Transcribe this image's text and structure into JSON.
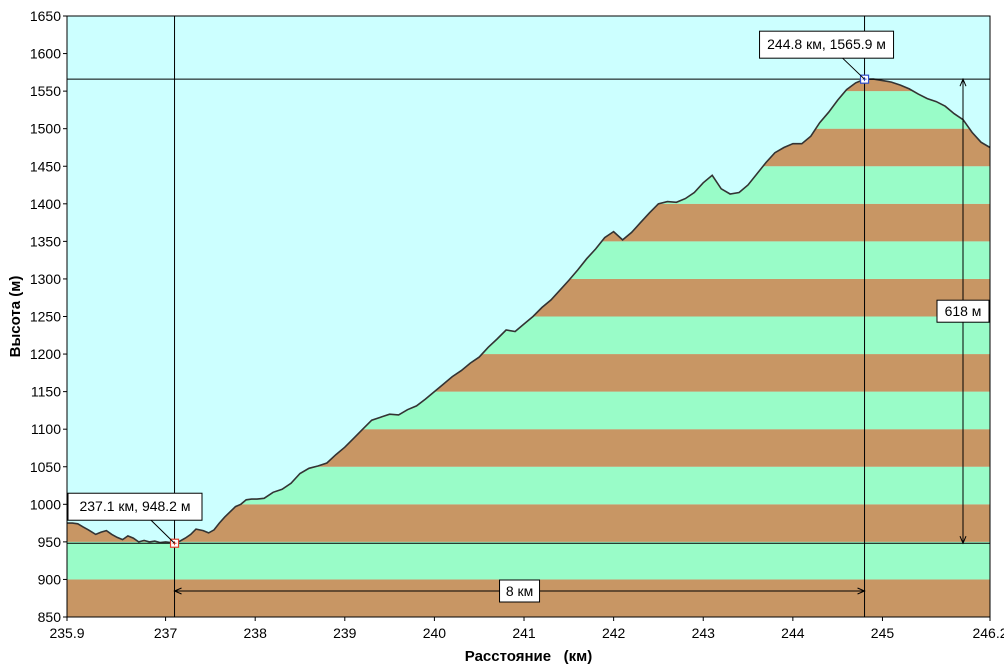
{
  "chart_data": {
    "type": "area",
    "xlabel": "Расстояние   (км)",
    "ylabel": "Высота (м)",
    "xlim": [
      235.9,
      246.2
    ],
    "ylim": [
      850,
      1650
    ],
    "x_ticks": [
      {
        "value": 235.9,
        "label": "235.9"
      },
      {
        "value": 237,
        "label": "237"
      },
      {
        "value": 238,
        "label": "238"
      },
      {
        "value": 239,
        "label": "239"
      },
      {
        "value": 240,
        "label": "240"
      },
      {
        "value": 241,
        "label": "241"
      },
      {
        "value": 242,
        "label": "242"
      },
      {
        "value": 243,
        "label": "243"
      },
      {
        "value": 244,
        "label": "244"
      },
      {
        "value": 245,
        "label": "245"
      },
      {
        "value": 246.2,
        "label": "246.2"
      }
    ],
    "y_ticks": [
      {
        "value": 850,
        "label": "850"
      },
      {
        "value": 900,
        "label": "900"
      },
      {
        "value": 950,
        "label": "950"
      },
      {
        "value": 1000,
        "label": "1000"
      },
      {
        "value": 1050,
        "label": "1050"
      },
      {
        "value": 1100,
        "label": "1100"
      },
      {
        "value": 1150,
        "label": "1150"
      },
      {
        "value": 1200,
        "label": "1200"
      },
      {
        "value": 1250,
        "label": "1250"
      },
      {
        "value": 1300,
        "label": "1300"
      },
      {
        "value": 1350,
        "label": "1350"
      },
      {
        "value": 1400,
        "label": "1400"
      },
      {
        "value": 1450,
        "label": "1450"
      },
      {
        "value": 1500,
        "label": "1500"
      },
      {
        "value": 1550,
        "label": "1550"
      },
      {
        "value": 1600,
        "label": "1600"
      },
      {
        "value": 1650,
        "label": "1650"
      }
    ],
    "band_step": 50,
    "band_colors": [
      "#c89664",
      "#99fcc8"
    ],
    "sky_color": "#ccffff",
    "line_color": "#333333",
    "series": [
      {
        "x": [
          235.9,
          235.96,
          236.02,
          236.08,
          236.14,
          236.22,
          236.28,
          236.34,
          236.4,
          236.46,
          236.52,
          236.58,
          236.64,
          236.7,
          236.76,
          236.82,
          236.88,
          236.94,
          237.0,
          237.06,
          237.1,
          237.16,
          237.22,
          237.28,
          237.34,
          237.42,
          237.48,
          237.54,
          237.6,
          237.66,
          237.72,
          237.78,
          237.84,
          237.9,
          237.96,
          238.02,
          238.1,
          238.2,
          238.3,
          238.4,
          238.5,
          238.6,
          238.7,
          238.8,
          238.9,
          239.0,
          239.1,
          239.2,
          239.3,
          239.4,
          239.5,
          239.6,
          239.7,
          239.8,
          239.9,
          240.0,
          240.1,
          240.2,
          240.3,
          240.4,
          240.5,
          240.6,
          240.7,
          240.8,
          240.9,
          241.0,
          241.1,
          241.2,
          241.3,
          241.4,
          241.5,
          241.6,
          241.7,
          241.8,
          241.9,
          242.0,
          242.1,
          242.2,
          242.3,
          242.4,
          242.5,
          242.6,
          242.7,
          242.8,
          242.9,
          243.0,
          243.1,
          243.2,
          243.3,
          243.4,
          243.5,
          243.6,
          243.7,
          243.8,
          243.9,
          244.0,
          244.1,
          244.2,
          244.3,
          244.4,
          244.5,
          244.6,
          244.7,
          244.8,
          244.9,
          245.0,
          245.1,
          245.2,
          245.3,
          245.4,
          245.5,
          245.6,
          245.7,
          245.8,
          245.9,
          246.0,
          246.1,
          246.2
        ],
        "values": [
          975,
          975,
          974,
          970,
          966,
          960,
          963,
          965,
          960,
          956,
          953,
          958,
          955,
          950,
          952,
          950,
          951,
          949,
          950,
          949,
          948.2,
          951,
          955,
          960,
          967,
          965,
          962,
          966,
          975,
          983,
          990,
          997,
          1000,
          1006,
          1007,
          1007,
          1008,
          1016,
          1020,
          1028,
          1041,
          1048,
          1051,
          1055,
          1066,
          1076,
          1088,
          1100,
          1112,
          1116,
          1120,
          1119,
          1126,
          1131,
          1140,
          1150,
          1160,
          1170,
          1178,
          1188,
          1196,
          1209,
          1220,
          1232,
          1230,
          1240,
          1250,
          1262,
          1272,
          1285,
          1298,
          1312,
          1327,
          1340,
          1355,
          1363,
          1352,
          1362,
          1375,
          1388,
          1400,
          1403,
          1402,
          1407,
          1415,
          1428,
          1438,
          1420,
          1413,
          1415,
          1425,
          1440,
          1455,
          1468,
          1475,
          1480,
          1480,
          1490,
          1508,
          1522,
          1538,
          1552,
          1561,
          1565.9,
          1566,
          1564,
          1562,
          1558,
          1553,
          1546,
          1540,
          1536,
          1530,
          1520,
          1512,
          1495,
          1482,
          1475
        ]
      }
    ],
    "markers": [
      {
        "x": 237.1,
        "y": 948.2,
        "label": "237.1 км, 948.2 м",
        "color": "#e0402e"
      },
      {
        "x": 244.8,
        "y": 1565.9,
        "label": "244.8 км, 1565.9 м",
        "color": "#3050d0"
      }
    ],
    "horizontal_span": {
      "label": "8 км"
    },
    "vertical_span": {
      "label": "618 м"
    }
  }
}
